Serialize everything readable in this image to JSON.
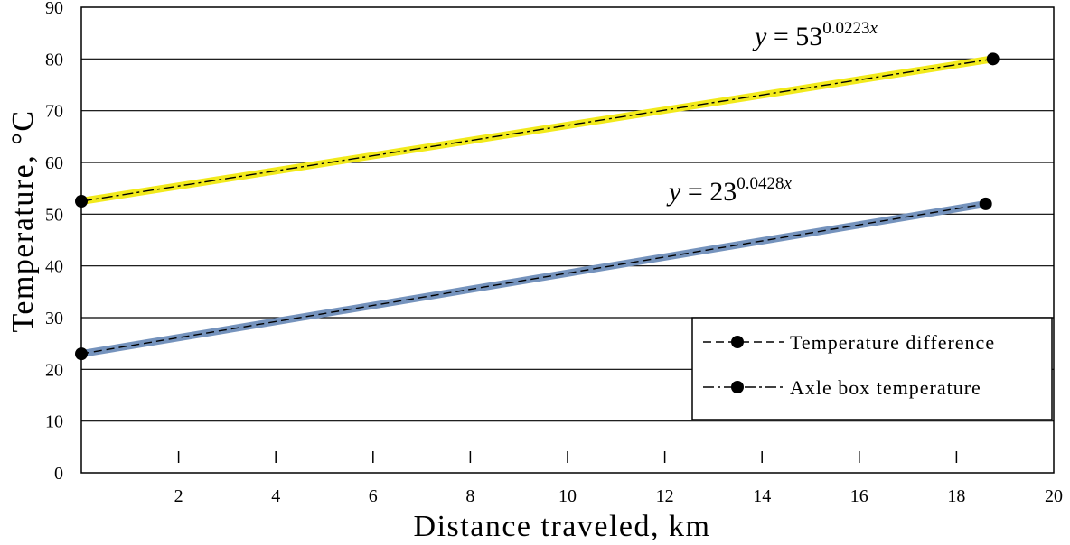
{
  "chart_data": {
    "type": "line",
    "xlabel": "Distance traveled, km",
    "ylabel": "Temperature, °C",
    "xlim": [
      0,
      20
    ],
    "ylim": [
      0,
      90
    ],
    "x_ticks": [
      "2",
      "4",
      "6",
      "8",
      "10",
      "12",
      "14",
      "16",
      "18",
      "20"
    ],
    "y_ticks": [
      "0",
      "10",
      "20",
      "30",
      "40",
      "50",
      "60",
      "70",
      "80",
      "90"
    ],
    "grid": "horizontal",
    "legend_position": "bottom-right",
    "series": [
      {
        "name": "Temperature difference",
        "color": "#7593bd",
        "line_style": "dashed",
        "points": [
          {
            "x": 0,
            "y": 23
          },
          {
            "x": 18.6,
            "y": 52
          }
        ],
        "equation": {
          "lhs": "y",
          "eq": " = ",
          "base": "23",
          "exp_num": "0.0428",
          "exp_var": "x"
        }
      },
      {
        "name": "Axle box temperature",
        "color": "#f2ea1c",
        "line_style": "dash-dot",
        "points": [
          {
            "x": 0,
            "y": 52.5
          },
          {
            "x": 18.75,
            "y": 80
          }
        ],
        "equation": {
          "lhs": "y",
          "eq": " = ",
          "base": "53",
          "exp_num": "0.0223",
          "exp_var": "x"
        }
      }
    ]
  }
}
